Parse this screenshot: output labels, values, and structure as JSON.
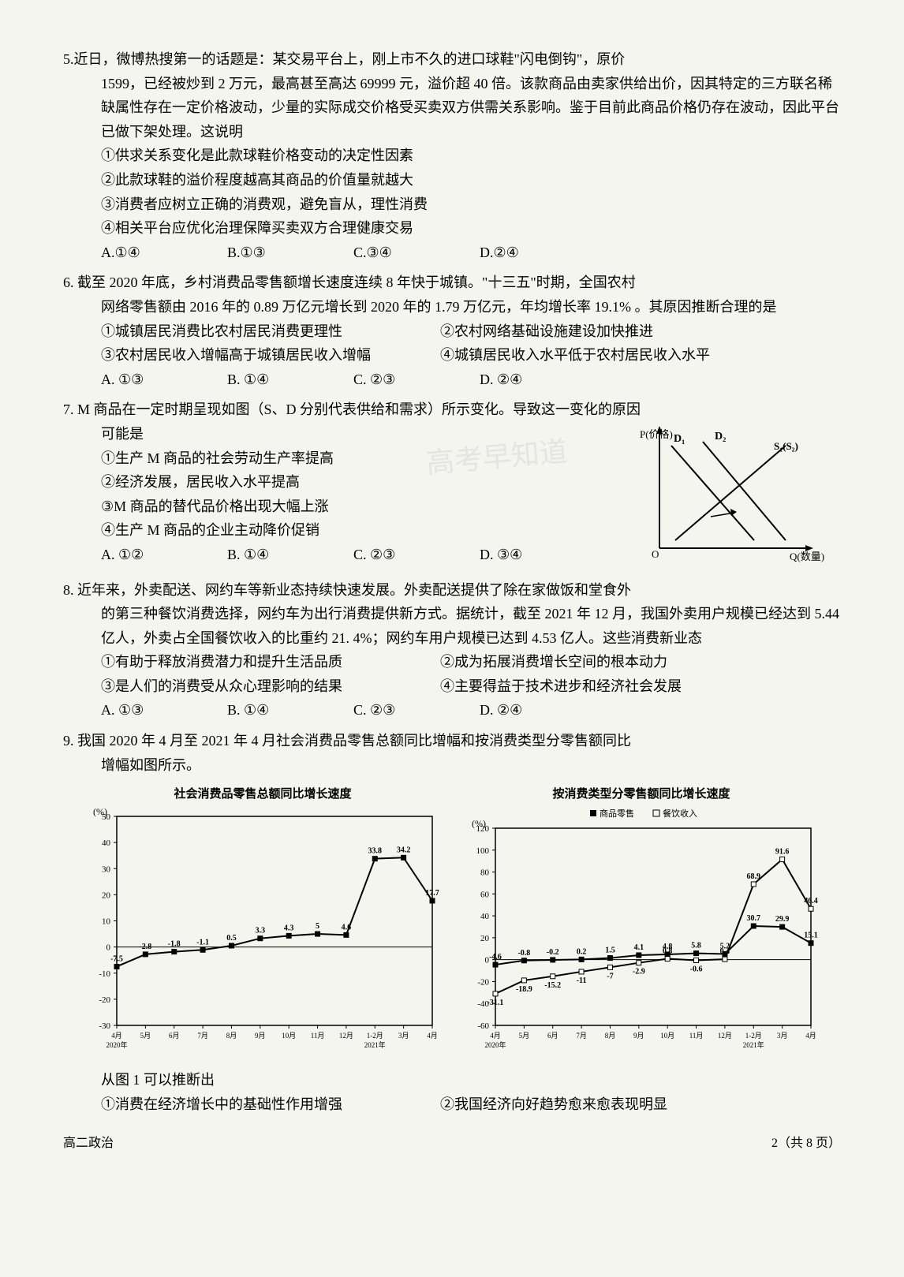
{
  "q5": {
    "num": "5.",
    "stem1": "近日，微博热搜第一的话题是：某交易平台上，刚上市不久的进口球鞋\"闪电倒钩\"，原价",
    "stem2": "1599，已经被炒到 2 万元，最高甚至高达 69999 元，溢价超 40 倍。该款商品由卖家供给出价，因其特定的三方联名稀缺属性存在一定价格波动，少量的实际成交价格受买卖双方供需关系影响。鉴于目前此商品价格仍存在波动，因此平台已做下架处理。这说明",
    "opt1": "①供求关系变化是此款球鞋价格变动的决定性因素",
    "opt2": "②此款球鞋的溢价程度越高其商品的价值量就越大",
    "opt3": "③消费者应树立正确的消费观，避免盲从，理性消费",
    "opt4": "④相关平台应优化治理保障买卖双方合理健康交易",
    "cA": "A.①④",
    "cB": "B.①③",
    "cC": "C.③④",
    "cD": "D.②④"
  },
  "q6": {
    "num": "6.",
    "stem1": " 截至 2020 年底，乡村消费品零售额增长速度连续 8 年快于城镇。\"十三五\"时期，全国农村",
    "stem2": "网络零售额由 2016 年的 0.89 万亿元增长到 2020 年的 1.79 万亿元，年均增长率 19.1% 。其原因推断合理的是",
    "opt1a": "①城镇居民消费比农村居民消费更理性",
    "opt1b": "②农村网络基础设施建设加快推进",
    "opt2a": "③农村居民收入增幅高于城镇居民收入增幅",
    "opt2b": "④城镇居民收入水平低于农村居民收入水平",
    "cA": "A. ①③",
    "cB": "B. ①④",
    "cC": "C. ②③",
    "cD": "D. ②④"
  },
  "q7": {
    "num": "7.",
    "stem1": " M 商品在一定时期呈现如图（S、D 分别代表供给和需求）所示变化。导致这一变化的原因",
    "stem2": "可能是",
    "opt1": "①生产 M 商品的社会劳动生产率提高",
    "opt2": "②经济发展，居民收入水平提高",
    "opt3": "③M 商品的替代品价格出现大幅上涨",
    "opt4": "④生产 M 商品的企业主动降价促销",
    "cA": "A. ①②",
    "cB": "B. ①④",
    "cC": "C. ②③",
    "cD": "D. ③④",
    "chart": {
      "ylabel": "P(价格)",
      "xlabel": "Q(数量)",
      "d1": "D₁",
      "d2": "D₂",
      "s": "S₁(S₂)",
      "origin": "O",
      "axis_color": "#000",
      "line_color": "#000",
      "bg": "#fff"
    }
  },
  "q8": {
    "num": "8.",
    "stem1": " 近年来，外卖配送、网约车等新业态持续快速发展。外卖配送提供了除在家做饭和堂食外",
    "stem2": "的第三种餐饮消费选择，网约车为出行消费提供新方式。据统计，截至 2021 年 12 月，我国外卖用户规模已经达到 5.44 亿人，外卖占全国餐饮收入的比重约 21. 4%；网约车用户规模已达到 4.53 亿人。这些消费新业态",
    "opt1a": "①有助于释放消费潜力和提升生活品质",
    "opt1b": "②成为拓展消费增长空间的根本动力",
    "opt2a": "③是人们的消费受从众心理影响的结果",
    "opt2b": "④主要得益于技术进步和经济社会发展",
    "cA": "A. ①③",
    "cB": "B. ①④",
    "cC": "C. ②③",
    "cD": "D. ②④"
  },
  "q9": {
    "num": "9.",
    "stem1": "  我国 2020 年 4 月至 2021 年 4 月社会消费品零售总额同比增幅和按消费类型分零售额同比",
    "stem2": "增幅如图所示。",
    "chart1": {
      "title": "社会消费品零售总额同比增长速度",
      "ylabel": "(%)",
      "ymin": -30,
      "ymax": 50,
      "ystep": 10,
      "yticks": [
        -30,
        -20,
        -10,
        0,
        10,
        20,
        30,
        40,
        50
      ],
      "xlabels": [
        "2020年4月",
        "5月",
        "6月",
        "7月",
        "8月",
        "9月",
        "10月",
        "11月",
        "12月",
        "2021年1-2月",
        "3月",
        "4月"
      ],
      "xlabels_short": [
        "4月",
        "5月",
        "6月",
        "7月",
        "8月",
        "9月",
        "10月",
        "11月",
        "12月",
        "1-2月",
        "3月",
        "4月"
      ],
      "values": [
        -7.5,
        -2.8,
        -1.8,
        -1.1,
        0.5,
        3.3,
        4.3,
        5.0,
        4.6,
        33.8,
        34.2,
        17.7
      ],
      "line_color": "#000",
      "marker": "square",
      "bg": "#fff",
      "grid": "#000"
    },
    "chart2": {
      "title": "按消费类型分零售额同比增长速度",
      "legend": [
        "商品零售",
        "餐饮收入"
      ],
      "ylabel": "(%)",
      "ymin": -60,
      "ymax": 120,
      "ystep": 20,
      "yticks": [
        -60,
        -40,
        -20,
        0,
        20,
        40,
        60,
        80,
        100,
        120
      ],
      "xlabels_short": [
        "4月",
        "5月",
        "6月",
        "7月",
        "8月",
        "9月",
        "10月",
        "11月",
        "12月",
        "1-2月",
        "3月",
        "4月"
      ],
      "series1": [
        -4.6,
        -0.8,
        -0.2,
        0.2,
        1.5,
        4.1,
        4.8,
        5.8,
        5.2,
        30.7,
        29.9,
        15.1
      ],
      "series2": [
        -31.1,
        -18.9,
        -15.2,
        -11.0,
        -7.0,
        -2.9,
        0.8,
        -0.6,
        0.4,
        68.9,
        91.6,
        46.4
      ],
      "line_color": "#000",
      "bg": "#fff"
    },
    "after": "从图 1 可以推断出",
    "opt1a": "①消费在经济增长中的基础性作用增强",
    "opt1b": "②我国经济向好趋势愈来愈表现明显"
  },
  "footer": {
    "left": "高二政治",
    "right": "2（共 8 页）"
  },
  "watermark": "高考早知道"
}
